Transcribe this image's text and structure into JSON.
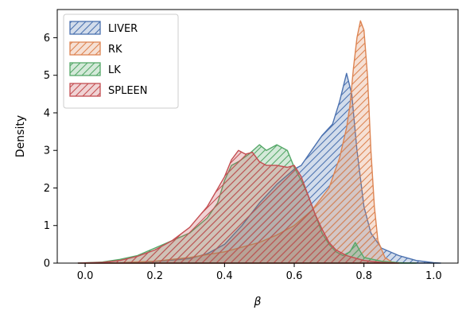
{
  "chart_data": {
    "type": "area",
    "xlabel": "β",
    "ylabel": "Density",
    "xlim": [
      -0.08,
      1.07
    ],
    "ylim": [
      0,
      6.75
    ],
    "xticks": [
      0.0,
      0.2,
      0.4,
      0.6,
      0.8,
      1.0
    ],
    "xtick_labels": [
      "0.0",
      "0.2",
      "0.4",
      "0.6",
      "0.8",
      "1.0"
    ],
    "yticks": [
      0,
      1,
      2,
      3,
      4,
      5,
      6
    ],
    "ytick_labels": [
      "0",
      "1",
      "2",
      "3",
      "4",
      "5",
      "6"
    ],
    "grid": false,
    "legend_position": "upper-left",
    "series": [
      {
        "name": "LIVER",
        "color": "#4c72b0",
        "hatch": "//",
        "points": [
          [
            -0.02,
            0
          ],
          [
            0.1,
            0.01
          ],
          [
            0.2,
            0.04
          ],
          [
            0.3,
            0.12
          ],
          [
            0.35,
            0.25
          ],
          [
            0.4,
            0.5
          ],
          [
            0.45,
            1.0
          ],
          [
            0.5,
            1.6
          ],
          [
            0.55,
            2.1
          ],
          [
            0.6,
            2.5
          ],
          [
            0.62,
            2.6
          ],
          [
            0.65,
            3.0
          ],
          [
            0.68,
            3.4
          ],
          [
            0.71,
            3.7
          ],
          [
            0.73,
            4.3
          ],
          [
            0.75,
            5.05
          ],
          [
            0.765,
            4.5
          ],
          [
            0.78,
            3.0
          ],
          [
            0.8,
            1.5
          ],
          [
            0.82,
            0.8
          ],
          [
            0.85,
            0.4
          ],
          [
            0.9,
            0.2
          ],
          [
            0.95,
            0.07
          ],
          [
            1.0,
            0.01
          ],
          [
            1.02,
            0
          ]
        ]
      },
      {
        "name": "RK",
        "color": "#dd8452",
        "hatch": "//",
        "points": [
          [
            0.0,
            0
          ],
          [
            0.1,
            0.01
          ],
          [
            0.2,
            0.05
          ],
          [
            0.3,
            0.15
          ],
          [
            0.4,
            0.3
          ],
          [
            0.5,
            0.55
          ],
          [
            0.55,
            0.75
          ],
          [
            0.6,
            1.0
          ],
          [
            0.65,
            1.4
          ],
          [
            0.7,
            2.0
          ],
          [
            0.73,
            2.8
          ],
          [
            0.75,
            3.6
          ],
          [
            0.76,
            4.2
          ],
          [
            0.77,
            5.2
          ],
          [
            0.78,
            6.0
          ],
          [
            0.79,
            6.45
          ],
          [
            0.8,
            6.2
          ],
          [
            0.81,
            5.0
          ],
          [
            0.82,
            3.0
          ],
          [
            0.83,
            1.5
          ],
          [
            0.84,
            0.6
          ],
          [
            0.86,
            0.15
          ],
          [
            0.88,
            0.03
          ],
          [
            0.9,
            0
          ]
        ]
      },
      {
        "name": "LK",
        "color": "#55a868",
        "hatch": "//",
        "points": [
          [
            -0.02,
            0
          ],
          [
            0.05,
            0.03
          ],
          [
            0.1,
            0.1
          ],
          [
            0.15,
            0.2
          ],
          [
            0.2,
            0.4
          ],
          [
            0.25,
            0.6
          ],
          [
            0.3,
            0.8
          ],
          [
            0.35,
            1.2
          ],
          [
            0.38,
            1.6
          ],
          [
            0.4,
            2.2
          ],
          [
            0.42,
            2.6
          ],
          [
            0.44,
            2.7
          ],
          [
            0.47,
            2.9
          ],
          [
            0.5,
            3.15
          ],
          [
            0.52,
            3.0
          ],
          [
            0.55,
            3.15
          ],
          [
            0.58,
            3.0
          ],
          [
            0.6,
            2.55
          ],
          [
            0.62,
            2.2
          ],
          [
            0.64,
            1.8
          ],
          [
            0.66,
            1.3
          ],
          [
            0.68,
            0.8
          ],
          [
            0.7,
            0.5
          ],
          [
            0.72,
            0.3
          ],
          [
            0.74,
            0.2
          ],
          [
            0.76,
            0.3
          ],
          [
            0.775,
            0.55
          ],
          [
            0.79,
            0.3
          ],
          [
            0.8,
            0.15
          ],
          [
            0.85,
            0.05
          ],
          [
            0.9,
            0.01
          ],
          [
            0.95,
            0
          ]
        ]
      },
      {
        "name": "SPLEEN",
        "color": "#c44e52",
        "hatch": "//",
        "points": [
          [
            -0.02,
            0
          ],
          [
            0.05,
            0.02
          ],
          [
            0.1,
            0.07
          ],
          [
            0.15,
            0.18
          ],
          [
            0.2,
            0.35
          ],
          [
            0.25,
            0.6
          ],
          [
            0.3,
            0.95
          ],
          [
            0.35,
            1.5
          ],
          [
            0.4,
            2.3
          ],
          [
            0.42,
            2.75
          ],
          [
            0.44,
            3.0
          ],
          [
            0.46,
            2.9
          ],
          [
            0.48,
            2.95
          ],
          [
            0.5,
            2.7
          ],
          [
            0.52,
            2.6
          ],
          [
            0.55,
            2.6
          ],
          [
            0.58,
            2.55
          ],
          [
            0.6,
            2.6
          ],
          [
            0.62,
            2.3
          ],
          [
            0.64,
            1.8
          ],
          [
            0.66,
            1.3
          ],
          [
            0.68,
            0.9
          ],
          [
            0.7,
            0.55
          ],
          [
            0.72,
            0.35
          ],
          [
            0.75,
            0.2
          ],
          [
            0.78,
            0.12
          ],
          [
            0.8,
            0.07
          ],
          [
            0.85,
            0.02
          ],
          [
            0.9,
            0
          ]
        ]
      }
    ]
  }
}
